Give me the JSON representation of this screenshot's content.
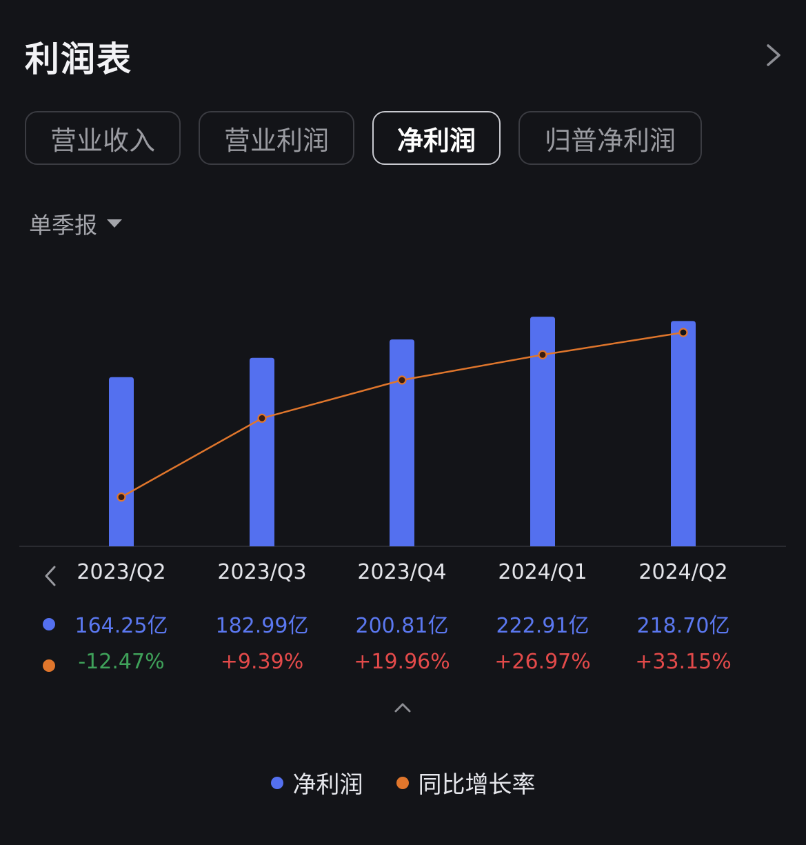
{
  "header": {
    "title": "利润表"
  },
  "tabs": [
    {
      "label": "营业收入",
      "active": false
    },
    {
      "label": "营业利润",
      "active": false
    },
    {
      "label": "净利润",
      "active": true
    },
    {
      "label": "归普净利润",
      "active": false
    }
  ],
  "period_selector": {
    "value": "单季报"
  },
  "colors": {
    "bar": "#5470ef",
    "line": "#e0762c",
    "positive": "#e34a4a",
    "negative": "#3fa25a"
  },
  "chart_data": {
    "type": "bar",
    "categories": [
      "2023/Q2",
      "2023/Q3",
      "2023/Q4",
      "2024/Q1",
      "2024/Q2"
    ],
    "series": [
      {
        "name": "净利润",
        "type": "bar",
        "values": [
          164.25,
          182.99,
          200.81,
          222.91,
          218.7
        ],
        "labels": [
          "164.25亿",
          "182.99亿",
          "200.81亿",
          "222.91亿",
          "218.70亿"
        ]
      },
      {
        "name": "同比增长率",
        "type": "line",
        "values": [
          -12.47,
          9.39,
          19.96,
          26.97,
          33.15
        ],
        "labels": [
          "-12.47%",
          "+9.39%",
          "+19.96%",
          "+26.97%",
          "+33.15%"
        ]
      }
    ],
    "grid": false,
    "legend": "bottom-center"
  },
  "legend": {
    "bar_label": "净利润",
    "line_label": "同比增长率"
  }
}
